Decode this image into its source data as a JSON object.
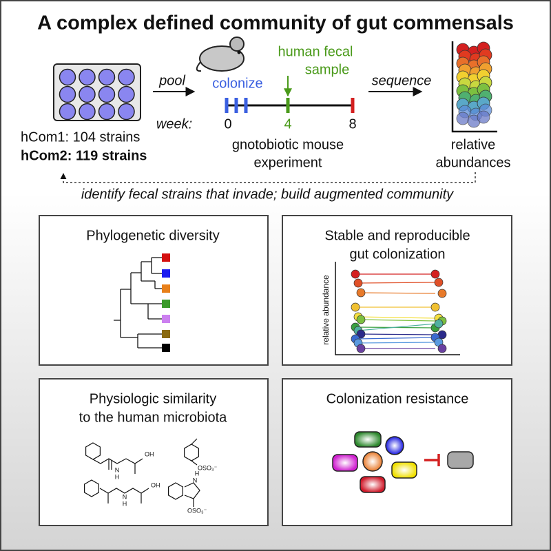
{
  "title": "A complex defined community of gut commensals",
  "workflow": {
    "pool": "pool",
    "colonize": "colonize",
    "fecal_sample": [
      "human fecal",
      "sample"
    ],
    "sequence": "sequence",
    "week_label": "week:",
    "weeks": [
      "0",
      "4",
      "8"
    ],
    "communities": [
      "hCom1: 104 strains",
      "hCom2: 119 strains"
    ],
    "experiment": [
      "gnotobiotic mouse",
      "experiment"
    ],
    "readout": [
      "relative",
      "abundances"
    ],
    "feedback": "identify fecal strains that invade; build augmented community"
  },
  "panels": [
    {
      "title": [
        "Phylogenetic diversity"
      ]
    },
    {
      "title": [
        "Stable and reproducible",
        "gut colonization"
      ],
      "y_axis_label": "relative abundance"
    },
    {
      "title": [
        "Physiologic similarity",
        "to the human microbiota"
      ],
      "molecules": [
        {
          "labels": [
            "N",
            "H",
            "OH"
          ]
        },
        {
          "labels": [
            "OSO₃⁻"
          ]
        },
        {
          "labels": [
            "N",
            "H",
            "OH"
          ]
        },
        {
          "labels": [
            "H",
            "N",
            "OSO₃⁻"
          ]
        }
      ]
    },
    {
      "title": [
        "Colonization resistance"
      ]
    }
  ]
}
